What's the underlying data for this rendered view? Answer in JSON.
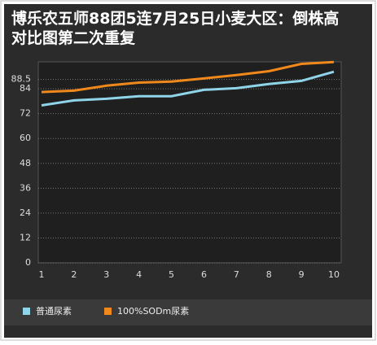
{
  "chart_data": {
    "type": "line",
    "title": "博乐农五师88团5连7月25日小麦大区：倒株高对比图第二次重复",
    "categories": [
      "1",
      "2",
      "3",
      "4",
      "5",
      "6",
      "7",
      "8",
      "9",
      "10"
    ],
    "series": [
      {
        "name": "普通尿素",
        "color": "#8fd4e8",
        "values": [
          76,
          78.4,
          79.2,
          80.4,
          80.4,
          83.5,
          84.3,
          86.3,
          87.8,
          92.2
        ]
      },
      {
        "name": "100%SODm尿素",
        "color": "#f0881c",
        "values": [
          82.4,
          83.1,
          85.5,
          87,
          87.5,
          89,
          90.6,
          92.5,
          96,
          96.9
        ]
      }
    ],
    "ylim": [
      0,
      97
    ],
    "yticks": [
      0,
      12,
      24,
      36,
      48,
      60,
      72,
      84,
      88.5
    ],
    "grid": true
  }
}
